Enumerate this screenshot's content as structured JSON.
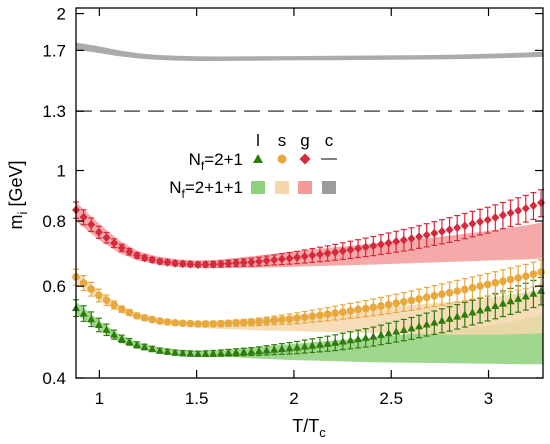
{
  "chart_data": {
    "type": "scatter",
    "xlabel": "T/T",
    "xlabel_sub": "c",
    "ylabel": "m",
    "ylabel_sub": "i",
    "ylabel_unit": " [GeV]",
    "xlim": [
      0.88,
      3.28
    ],
    "ylim": [
      0.4,
      2.05
    ],
    "y_scale": "log",
    "x_ticks": [
      1,
      1.5,
      2,
      2.5,
      3
    ],
    "x_tick_labels": [
      "1",
      "1.5",
      "2",
      "2.5",
      "3"
    ],
    "y_ticks": [
      0.4,
      0.6,
      0.8,
      1.0,
      1.3,
      1.7,
      2.0
    ],
    "y_tick_labels": [
      "0.4",
      "0.6",
      "0.8",
      "1",
      "1.3",
      "1.7",
      "2"
    ],
    "reference_line": {
      "y": 1.3,
      "style": "dashed",
      "color": "#555555"
    },
    "legend": {
      "columns": [
        "l",
        "s",
        "g",
        "c"
      ],
      "rows": [
        {
          "label": "N",
          "label_sub": "f",
          "label_rest": "=2+1",
          "kind": "points"
        },
        {
          "label": "N",
          "label_sub": "f",
          "label_rest": "=2+1+1",
          "kind": "bands"
        }
      ]
    },
    "x": [
      0.88,
      1.0,
      1.1,
      1.2,
      1.3,
      1.4,
      1.5,
      1.6,
      1.8,
      2.0,
      2.2,
      2.4,
      2.6,
      2.8,
      3.0,
      3.2,
      3.28
    ],
    "points": [
      {
        "name": "l",
        "color": "#2e7d0c",
        "marker": "triangle",
        "x_start": 0.88,
        "x_end": 3.27,
        "count": 62,
        "y": [
          0.545,
          0.505,
          0.478,
          0.462,
          0.452,
          0.447,
          0.445,
          0.446,
          0.45,
          0.457,
          0.467,
          0.48,
          0.498,
          0.52,
          0.545,
          0.575,
          0.59
        ],
        "err": [
          0.02,
          0.015,
          0.008,
          0.006,
          0.005,
          0.005,
          0.005,
          0.006,
          0.008,
          0.012,
          0.016,
          0.02,
          0.024,
          0.028,
          0.03,
          0.034,
          0.036
        ]
      },
      {
        "name": "s",
        "color": "#e8a83c",
        "marker": "circle",
        "x_start": 0.88,
        "x_end": 3.27,
        "count": 62,
        "y": [
          0.625,
          0.575,
          0.545,
          0.525,
          0.515,
          0.51,
          0.508,
          0.508,
          0.512,
          0.52,
          0.532,
          0.546,
          0.563,
          0.583,
          0.605,
          0.628,
          0.64
        ],
        "err": [
          0.022,
          0.016,
          0.008,
          0.006,
          0.005,
          0.005,
          0.005,
          0.006,
          0.008,
          0.012,
          0.016,
          0.02,
          0.024,
          0.028,
          0.03,
          0.034,
          0.036
        ]
      },
      {
        "name": "g",
        "color": "#d62a3c",
        "marker": "diamond",
        "x_start": 0.88,
        "x_end": 3.27,
        "count": 62,
        "y": [
          0.84,
          0.76,
          0.715,
          0.685,
          0.67,
          0.663,
          0.66,
          0.661,
          0.668,
          0.68,
          0.696,
          0.716,
          0.74,
          0.77,
          0.805,
          0.848,
          0.87
        ],
        "err": [
          0.03,
          0.02,
          0.012,
          0.008,
          0.007,
          0.007,
          0.007,
          0.008,
          0.012,
          0.018,
          0.024,
          0.03,
          0.036,
          0.042,
          0.046,
          0.05,
          0.052
        ]
      }
    ],
    "bands": [
      {
        "name": "l",
        "color": "#8fd07a",
        "lo": [
          0.53,
          0.495,
          0.47,
          0.455,
          0.447,
          0.443,
          0.442,
          0.441,
          0.436,
          0.433,
          0.431,
          0.429,
          0.428,
          0.427,
          0.426,
          0.425,
          0.425
        ],
        "hi": [
          0.56,
          0.515,
          0.486,
          0.468,
          0.458,
          0.453,
          0.451,
          0.451,
          0.458,
          0.465,
          0.472,
          0.478,
          0.486,
          0.494,
          0.504,
          0.52,
          0.528
        ]
      },
      {
        "name": "s",
        "color": "#f5d7ab",
        "lo": [
          0.61,
          0.565,
          0.537,
          0.518,
          0.508,
          0.503,
          0.5,
          0.497,
          0.494,
          0.492,
          0.49,
          0.488,
          0.486,
          0.484,
          0.484,
          0.486,
          0.488
        ],
        "hi": [
          0.64,
          0.585,
          0.553,
          0.532,
          0.522,
          0.516,
          0.514,
          0.514,
          0.52,
          0.528,
          0.536,
          0.544,
          0.552,
          0.56,
          0.57,
          0.585,
          0.592
        ]
      },
      {
        "name": "g",
        "color": "#f49a9a",
        "lo": [
          0.8,
          0.735,
          0.695,
          0.672,
          0.66,
          0.654,
          0.651,
          0.65,
          0.651,
          0.654,
          0.657,
          0.66,
          0.664,
          0.668,
          0.672,
          0.676,
          0.678
        ],
        "hi": [
          0.87,
          0.79,
          0.735,
          0.7,
          0.684,
          0.676,
          0.672,
          0.674,
          0.686,
          0.7,
          0.712,
          0.724,
          0.736,
          0.75,
          0.766,
          0.786,
          0.796
        ]
      },
      {
        "name": "c",
        "color": "#9c9c9c",
        "lo": [
          1.705,
          1.68,
          1.657,
          1.64,
          1.63,
          1.625,
          1.622,
          1.622,
          1.624,
          1.627,
          1.628,
          1.63,
          1.632,
          1.635,
          1.64,
          1.648,
          1.652
        ],
        "hi": [
          1.76,
          1.73,
          1.7,
          1.678,
          1.666,
          1.66,
          1.656,
          1.655,
          1.656,
          1.658,
          1.66,
          1.662,
          1.664,
          1.668,
          1.675,
          1.684,
          1.69
        ]
      }
    ],
    "c_line_color": "#555555"
  }
}
